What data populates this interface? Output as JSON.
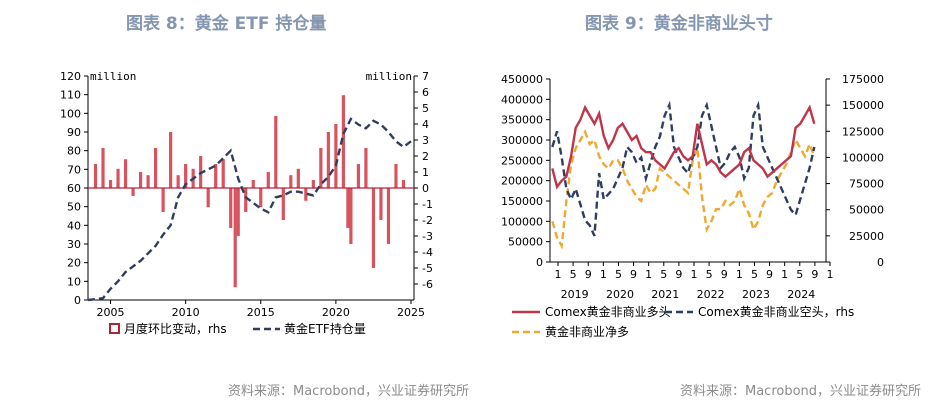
{
  "figure_left": {
    "title": "图表 8：黄金 ETF 持仓量",
    "source": "资料来源：Macrobond，兴业证券研究所",
    "left_unit": "million",
    "right_unit": "million",
    "legend": [
      "月度环比变动，rhs",
      "黄金ETF持仓量"
    ]
  },
  "figure_right": {
    "title": "图表 9：黄金非商业头寸",
    "source": "资料来源：Macrobond，兴业证券研究所",
    "legend": [
      "Comex黄金非商业多头",
      "Comex黄金非商业空头，rhs",
      "黄金非商业净多"
    ]
  },
  "colors": {
    "bars": "#d9535f",
    "bars_dark": "#b0243a",
    "etf_line": "#2f3d5e",
    "long": "#c0354a",
    "short": "#2f3d5e",
    "net": "#f0a830",
    "title": "#8496b0"
  },
  "chart_data": [
    {
      "type": "bar",
      "left_axis": {
        "ylim": [
          0,
          120
        ],
        "ticks": [
          0,
          10,
          20,
          30,
          40,
          50,
          60,
          70,
          80,
          90,
          100,
          110,
          120
        ]
      },
      "right_axis": {
        "ylim": [
          -7,
          7
        ],
        "ticks": [
          -6,
          -5,
          -4,
          -3,
          -2,
          -1,
          0,
          1,
          2,
          3,
          4,
          5,
          6,
          7
        ]
      },
      "x_ticks": [
        "2005",
        "2010",
        "2015",
        "2020",
        "2025"
      ],
      "series": [
        {
          "name": "月度环比变动，rhs",
          "type": "bar",
          "axis": "right",
          "x": [
            2004.0,
            2004.5,
            2005.0,
            2005.5,
            2006.0,
            2006.5,
            2007.0,
            2007.5,
            2008.0,
            2008.5,
            2009.0,
            2009.5,
            2010.0,
            2010.5,
            2011.0,
            2011.5,
            2012.0,
            2012.5,
            2013.0,
            2013.3,
            2013.5,
            2014.0,
            2014.5,
            2015.0,
            2015.5,
            2016.0,
            2016.5,
            2017.0,
            2017.5,
            2018.0,
            2018.5,
            2019.0,
            2019.5,
            2020.0,
            2020.5,
            2020.8,
            2021.0,
            2021.5,
            2022.0,
            2022.5,
            2023.0,
            2023.5,
            2024.0,
            2024.5
          ],
          "values": [
            1.5,
            2.5,
            0.5,
            1.2,
            1.8,
            -0.5,
            1.0,
            0.8,
            2.5,
            -1.5,
            3.5,
            0.8,
            1.5,
            1.2,
            2.0,
            -1.2,
            1.5,
            1.8,
            -2.5,
            -6.2,
            -3.0,
            -1.5,
            0.5,
            -1.2,
            1.0,
            4.5,
            -2.0,
            0.8,
            1.2,
            -0.8,
            0.5,
            2.5,
            3.5,
            4.0,
            5.8,
            -2.5,
            -3.5,
            1.5,
            2.5,
            -5.0,
            -2.0,
            -3.5,
            1.5,
            0.5
          ]
        },
        {
          "name": "黄金ETF持仓量",
          "type": "line",
          "axis": "left",
          "x": [
            2003.5,
            2004.0,
            2004.5,
            2005.0,
            2005.5,
            2006.0,
            2006.5,
            2007.0,
            2007.5,
            2008.0,
            2008.5,
            2009.0,
            2009.5,
            2010.0,
            2010.5,
            2011.0,
            2011.5,
            2012.0,
            2012.5,
            2013.0,
            2013.5,
            2014.0,
            2014.5,
            2015.0,
            2015.5,
            2016.0,
            2016.5,
            2017.0,
            2017.5,
            2018.0,
            2018.5,
            2019.0,
            2019.5,
            2020.0,
            2020.5,
            2021.0,
            2021.5,
            2022.0,
            2022.5,
            2023.0,
            2023.5,
            2024.0,
            2024.5,
            2025.0
          ],
          "values": [
            0,
            0.5,
            1,
            6,
            10,
            15,
            18,
            21,
            25,
            29,
            35,
            40,
            55,
            62,
            65,
            68,
            70,
            72,
            76,
            80,
            65,
            55,
            52,
            49,
            47,
            55,
            56,
            58,
            58,
            57,
            56,
            62,
            66,
            72,
            89,
            97,
            94,
            92,
            96,
            94,
            90,
            85,
            82,
            85
          ]
        }
      ]
    },
    {
      "type": "line",
      "left_axis": {
        "ylim": [
          0,
          450000
        ],
        "ticks": [
          0,
          50000,
          100000,
          150000,
          200000,
          250000,
          300000,
          350000,
          400000,
          450000
        ]
      },
      "right_axis": {
        "ylim": [
          0,
          175000
        ],
        "ticks": [
          0,
          25000,
          50000,
          75000,
          100000,
          125000,
          150000,
          175000
        ]
      },
      "x_month_ticks": [
        "1",
        "5",
        "9",
        "1",
        "5",
        "9",
        "1",
        "5",
        "9",
        "1",
        "5",
        "9",
        "1",
        "5",
        "9",
        "1",
        "5",
        "9",
        "1"
      ],
      "x_year_labels": [
        "2019",
        "2020",
        "2021",
        "2022",
        "2023",
        "2024"
      ],
      "series": [
        {
          "name": "Comex黄金非商业多头",
          "axis": "left",
          "x": [
            2019.0,
            2019.1,
            2019.2,
            2019.3,
            2019.4,
            2019.5,
            2019.6,
            2019.7,
            2019.8,
            2019.9,
            2020.0,
            2020.1,
            2020.2,
            2020.3,
            2020.4,
            2020.5,
            2020.6,
            2020.7,
            2020.8,
            2020.9,
            2021.0,
            2021.1,
            2021.2,
            2021.3,
            2021.4,
            2021.5,
            2021.6,
            2021.7,
            2021.8,
            2021.9,
            2022.0,
            2022.1,
            2022.2,
            2022.3,
            2022.4,
            2022.5,
            2022.6,
            2022.7,
            2022.8,
            2022.9,
            2023.0,
            2023.1,
            2023.2,
            2023.3,
            2023.4,
            2023.5,
            2023.6,
            2023.7,
            2023.8,
            2023.9,
            2024.0,
            2024.1,
            2024.2,
            2024.3,
            2024.4,
            2024.5,
            2024.6
          ],
          "values": [
            230000,
            185000,
            200000,
            210000,
            260000,
            330000,
            350000,
            380000,
            360000,
            340000,
            365000,
            310000,
            280000,
            300000,
            330000,
            340000,
            320000,
            300000,
            310000,
            280000,
            270000,
            270000,
            250000,
            240000,
            230000,
            250000,
            270000,
            280000,
            260000,
            250000,
            260000,
            340000,
            290000,
            240000,
            250000,
            240000,
            220000,
            210000,
            220000,
            230000,
            240000,
            270000,
            280000,
            250000,
            240000,
            230000,
            210000,
            220000,
            230000,
            240000,
            250000,
            260000,
            330000,
            340000,
            360000,
            380000,
            340000
          ]
        },
        {
          "name": "Comex黄金非商业空头，rhs",
          "axis": "right",
          "x": [
            2019.0,
            2019.1,
            2019.2,
            2019.3,
            2019.4,
            2019.5,
            2019.6,
            2019.7,
            2019.8,
            2019.9,
            2020.0,
            2020.1,
            2020.2,
            2020.3,
            2020.4,
            2020.5,
            2020.6,
            2020.7,
            2020.8,
            2020.9,
            2021.0,
            2021.1,
            2021.2,
            2021.3,
            2021.4,
            2021.5,
            2021.6,
            2021.7,
            2021.8,
            2021.9,
            2022.0,
            2022.1,
            2022.2,
            2022.3,
            2022.4,
            2022.5,
            2022.6,
            2022.7,
            2022.8,
            2022.9,
            2023.0,
            2023.1,
            2023.2,
            2023.3,
            2023.4,
            2023.5,
            2023.6,
            2023.7,
            2023.8,
            2023.9,
            2024.0,
            2024.1,
            2024.2,
            2024.3,
            2024.4,
            2024.5,
            2024.6
          ],
          "values": [
            110000,
            125000,
            100000,
            70000,
            60000,
            70000,
            55000,
            40000,
            35000,
            25000,
            85000,
            60000,
            65000,
            70000,
            80000,
            90000,
            110000,
            105000,
            95000,
            100000,
            80000,
            95000,
            110000,
            120000,
            140000,
            150000,
            110000,
            100000,
            90000,
            85000,
            100000,
            110000,
            140000,
            150000,
            130000,
            110000,
            90000,
            95000,
            105000,
            110000,
            100000,
            80000,
            90000,
            140000,
            150000,
            110000,
            100000,
            90000,
            80000,
            70000,
            60000,
            50000,
            45000,
            60000,
            75000,
            90000,
            110000
          ]
        },
        {
          "name": "黄金非商业净多",
          "axis": "left",
          "x": [
            2019.0,
            2019.1,
            2019.2,
            2019.3,
            2019.4,
            2019.5,
            2019.6,
            2019.7,
            2019.8,
            2019.9,
            2020.0,
            2020.1,
            2020.2,
            2020.3,
            2020.4,
            2020.5,
            2020.6,
            2020.7,
            2020.8,
            2020.9,
            2021.0,
            2021.1,
            2021.2,
            2021.3,
            2021.4,
            2021.5,
            2021.6,
            2021.7,
            2021.8,
            2021.9,
            2022.0,
            2022.1,
            2022.2,
            2022.3,
            2022.4,
            2022.5,
            2022.6,
            2022.7,
            2022.8,
            2022.9,
            2023.0,
            2023.1,
            2023.2,
            2023.3,
            2023.4,
            2023.5,
            2023.6,
            2023.7,
            2023.8,
            2023.9,
            2024.0,
            2024.1,
            2024.2,
            2024.3,
            2024.4,
            2024.5,
            2024.6
          ],
          "values": [
            100000,
            60000,
            40000,
            150000,
            240000,
            280000,
            300000,
            320000,
            290000,
            300000,
            260000,
            240000,
            230000,
            250000,
            250000,
            230000,
            200000,
            180000,
            160000,
            150000,
            190000,
            170000,
            180000,
            230000,
            220000,
            210000,
            200000,
            190000,
            180000,
            170000,
            250000,
            280000,
            160000,
            80000,
            100000,
            130000,
            130000,
            150000,
            140000,
            150000,
            180000,
            140000,
            120000,
            80000,
            100000,
            140000,
            160000,
            170000,
            200000,
            220000,
            240000,
            270000,
            300000,
            280000,
            260000,
            290000,
            260000
          ]
        }
      ]
    }
  ]
}
